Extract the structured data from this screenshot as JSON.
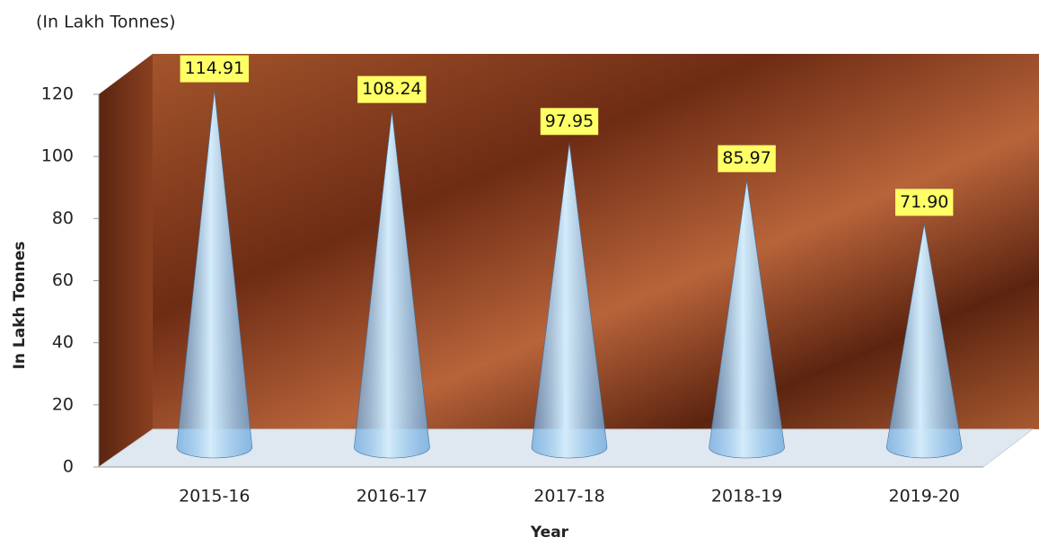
{
  "chart_data": {
    "type": "cone",
    "subtitle": "(In Lakh Tonnes)",
    "y_label": "In Lakh Tonnes",
    "x_label": "Year",
    "categories": [
      "2015-16",
      "2016-17",
      "2017-18",
      "2018-19",
      "2019-20"
    ],
    "values": [
      114.91,
      108.24,
      97.95,
      85.97,
      71.9
    ],
    "value_labels": [
      "114.91",
      "108.24",
      "97.95",
      "85.97",
      "71.90"
    ],
    "color": "#6aa6dc",
    "ylim": [
      0,
      120
    ],
    "yticks": [
      0,
      20,
      40,
      60,
      80,
      100,
      120
    ]
  }
}
